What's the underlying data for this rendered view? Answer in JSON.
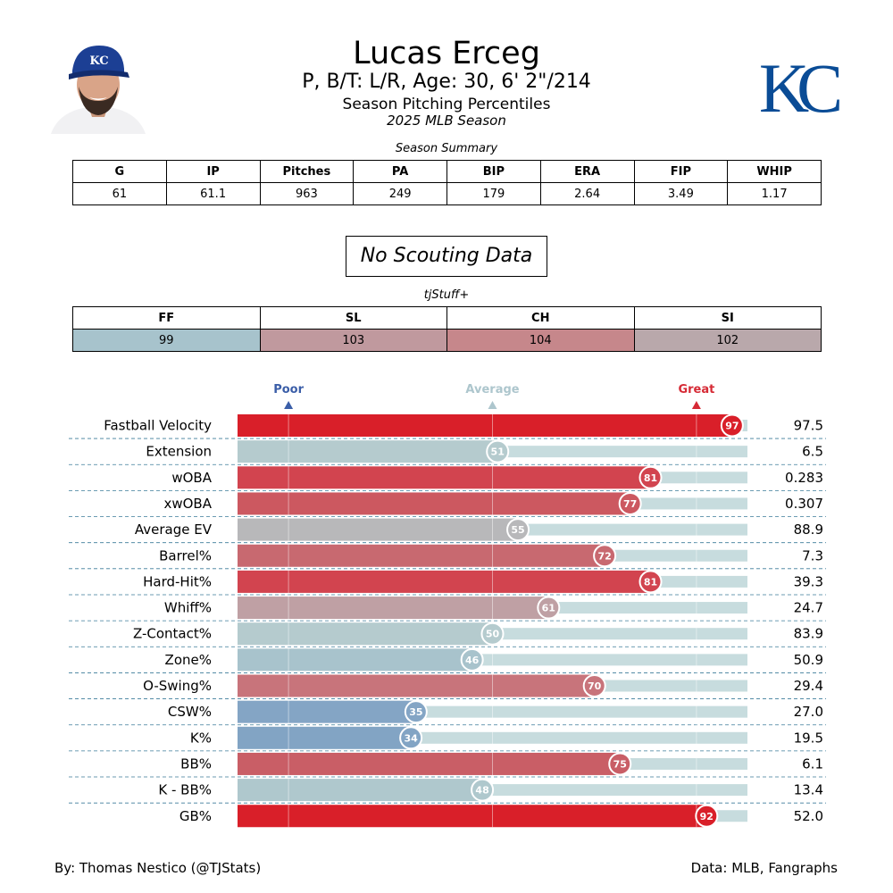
{
  "header": {
    "player_name": "Lucas Erceg",
    "player_info": "P, B/T: L/R, Age: 30, 6' 2\"/214",
    "subtitle": "Season Pitching Percentiles",
    "season": "2025 MLB Season",
    "team_logo_text": "KC",
    "cap_logo_text": "KC"
  },
  "summary": {
    "caption": "Season Summary",
    "headers": [
      "G",
      "IP",
      "Pitches",
      "PA",
      "BIP",
      "ERA",
      "FIP",
      "WHIP"
    ],
    "values": [
      "61",
      "61.1",
      "963",
      "249",
      "179",
      "2.64",
      "3.49",
      "1.17"
    ]
  },
  "scouting": {
    "text": "No Scouting Data"
  },
  "stuff": {
    "caption": "tjStuff+",
    "headers": [
      "FF",
      "SL",
      "CH",
      "SI"
    ],
    "values": [
      "99",
      "103",
      "104",
      "102"
    ],
    "colors": [
      "#a7c3cc",
      "#c0999e",
      "#c6878b",
      "#b9a8ab"
    ]
  },
  "chart_data": {
    "type": "bar",
    "orientation": "horizontal",
    "xlim": [
      0,
      100
    ],
    "markers": [
      {
        "label": "Poor",
        "value": 10,
        "color": "#3b5ea8"
      },
      {
        "label": "Average",
        "value": 50,
        "color": "#adc6cd"
      },
      {
        "label": "Great",
        "value": 90,
        "color": "#d62a35"
      }
    ],
    "categories": [
      "Fastball Velocity",
      "Extension",
      "wOBA",
      "xwOBA",
      "Average EV",
      "Barrel%",
      "Hard-Hit%",
      "Whiff%",
      "Z-Contact%",
      "Zone%",
      "O-Swing%",
      "CSW%",
      "K%",
      "BB%",
      "K - BB%",
      "GB%"
    ],
    "percentiles": [
      97,
      51,
      81,
      77,
      55,
      72,
      81,
      61,
      50,
      46,
      70,
      35,
      34,
      75,
      48,
      92
    ],
    "stat_values": [
      "97.5",
      "6.5",
      "0.283",
      "0.307",
      "88.9",
      "7.3",
      "39.3",
      "24.7",
      "83.9",
      "50.9",
      "29.4",
      "27.0",
      "19.5",
      "6.1",
      "13.4",
      "52.0"
    ],
    "colors": [
      "#d91f29",
      "#b5cbce",
      "#d2444f",
      "#cc5860",
      "#b8b8ba",
      "#c86970",
      "#d2444f",
      "#bfa0a4",
      "#b5cbce",
      "#a8c3cc",
      "#c8747b",
      "#84a5c5",
      "#82a4c4",
      "#c95e66",
      "#afc8cd",
      "#d91f29"
    ],
    "track_color": "#c7dcde"
  },
  "footer": {
    "left": "By: Thomas Nestico (@TJStats)",
    "right": "Data: MLB, Fangraphs"
  }
}
